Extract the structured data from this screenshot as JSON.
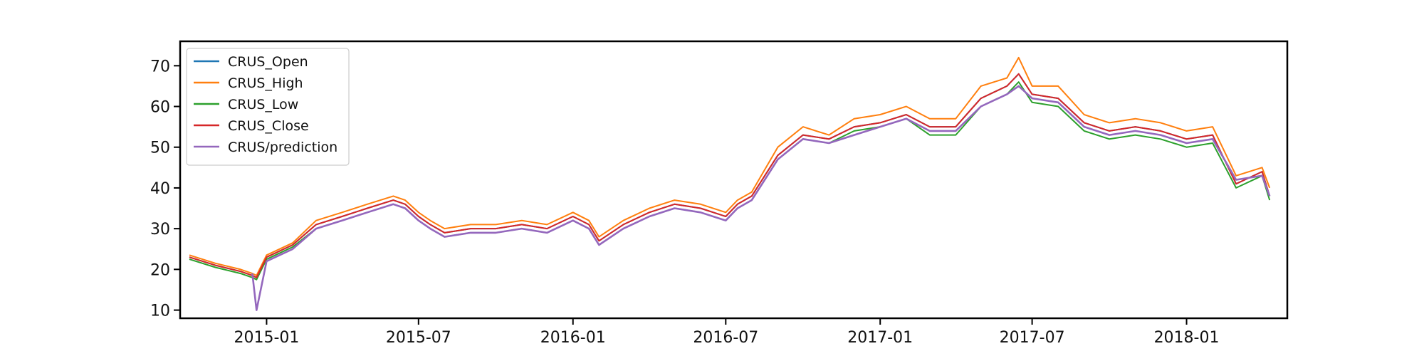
{
  "chart_data": {
    "type": "line",
    "title": "",
    "xlabel": "",
    "ylabel": "",
    "xlim": [
      "2014-09-20",
      "2018-05-01"
    ],
    "ylim": [
      8,
      76
    ],
    "grid": false,
    "legend_position": "top-left",
    "x_ticks": [
      "2015-01",
      "2015-07",
      "2016-01",
      "2016-07",
      "2017-01",
      "2017-07",
      "2018-01"
    ],
    "y_ticks": [
      10,
      20,
      30,
      40,
      50,
      60,
      70
    ],
    "x": [
      "2014-10-01",
      "2014-11-01",
      "2014-12-01",
      "2014-12-15",
      "2014-12-20",
      "2015-01-01",
      "2015-02-01",
      "2015-03-01",
      "2015-04-01",
      "2015-05-01",
      "2015-06-01",
      "2015-06-15",
      "2015-07-01",
      "2015-07-15",
      "2015-08-01",
      "2015-09-01",
      "2015-10-01",
      "2015-11-01",
      "2015-12-01",
      "2016-01-01",
      "2016-01-20",
      "2016-02-01",
      "2016-03-01",
      "2016-04-01",
      "2016-05-01",
      "2016-06-01",
      "2016-07-01",
      "2016-07-15",
      "2016-08-01",
      "2016-09-01",
      "2016-10-01",
      "2016-11-01",
      "2016-12-01",
      "2017-01-01",
      "2017-02-01",
      "2017-03-01",
      "2017-04-01",
      "2017-05-01",
      "2017-06-01",
      "2017-06-15",
      "2017-07-01",
      "2017-08-01",
      "2017-09-01",
      "2017-10-01",
      "2017-11-01",
      "2017-12-01",
      "2018-01-01",
      "2018-02-01",
      "2018-03-01",
      "2018-04-01",
      "2018-04-10"
    ],
    "series": [
      {
        "name": "CRUS_Open",
        "color": "#1f77b4",
        "values": [
          23,
          21,
          19.5,
          18.5,
          18,
          23,
          26,
          31,
          33,
          35,
          37,
          36,
          33,
          31,
          29,
          30,
          30,
          31,
          30,
          33,
          31,
          27,
          31,
          34,
          36,
          35,
          33,
          36,
          38,
          48,
          53,
          52,
          55,
          56,
          58,
          55,
          55,
          62,
          65,
          68,
          63,
          62,
          56,
          54,
          55,
          54,
          52,
          53,
          41,
          44,
          38
        ]
      },
      {
        "name": "CRUS_High",
        "color": "#ff7f0e",
        "values": [
          23.5,
          21.5,
          20,
          19,
          18.5,
          23.5,
          26.5,
          32,
          34,
          36,
          38,
          37,
          34,
          32,
          30,
          31,
          31,
          32,
          31,
          34,
          32,
          28,
          32,
          35,
          37,
          36,
          34,
          37,
          39,
          50,
          55,
          53,
          57,
          58,
          60,
          57,
          57,
          65,
          67,
          72,
          65,
          65,
          58,
          56,
          57,
          56,
          54,
          55,
          43,
          45,
          40
        ]
      },
      {
        "name": "CRUS_Low",
        "color": "#2ca02c",
        "values": [
          22.5,
          20.5,
          19,
          18,
          17.5,
          22.5,
          25.5,
          30,
          32,
          34,
          36,
          35,
          32,
          30,
          28,
          29,
          29,
          30,
          29,
          32,
          30,
          26,
          30,
          33,
          35,
          34,
          32,
          35,
          37,
          47,
          52,
          51,
          54,
          55,
          57,
          53,
          53,
          60,
          63,
          66,
          61,
          60,
          54,
          52,
          53,
          52,
          50,
          51,
          40,
          43,
          37
        ]
      },
      {
        "name": "CRUS_Close",
        "color": "#d62728",
        "values": [
          23,
          21,
          19.5,
          18.5,
          18,
          23,
          26,
          31,
          33,
          35,
          37,
          36,
          33,
          31,
          29,
          30,
          30,
          31,
          30,
          33,
          31,
          27,
          31,
          34,
          36,
          35,
          33,
          36,
          38,
          48,
          53,
          52,
          55,
          56,
          58,
          55,
          55,
          62,
          65,
          68,
          63,
          62,
          56,
          54,
          55,
          54,
          52,
          53,
          41,
          44,
          38
        ]
      },
      {
        "name": "CRUS/prediction",
        "color": "#9467bd",
        "values": [
          null,
          null,
          null,
          19,
          10,
          22,
          25,
          30,
          32,
          34,
          36,
          35,
          32,
          30,
          28,
          29,
          29,
          30,
          29,
          32,
          30,
          26,
          30,
          33,
          35,
          34,
          32,
          35,
          37,
          47,
          52,
          51,
          53,
          55,
          57,
          54,
          54,
          60,
          63,
          65,
          62,
          61,
          55,
          53,
          54,
          53,
          51,
          52,
          42,
          43,
          38
        ]
      }
    ]
  }
}
